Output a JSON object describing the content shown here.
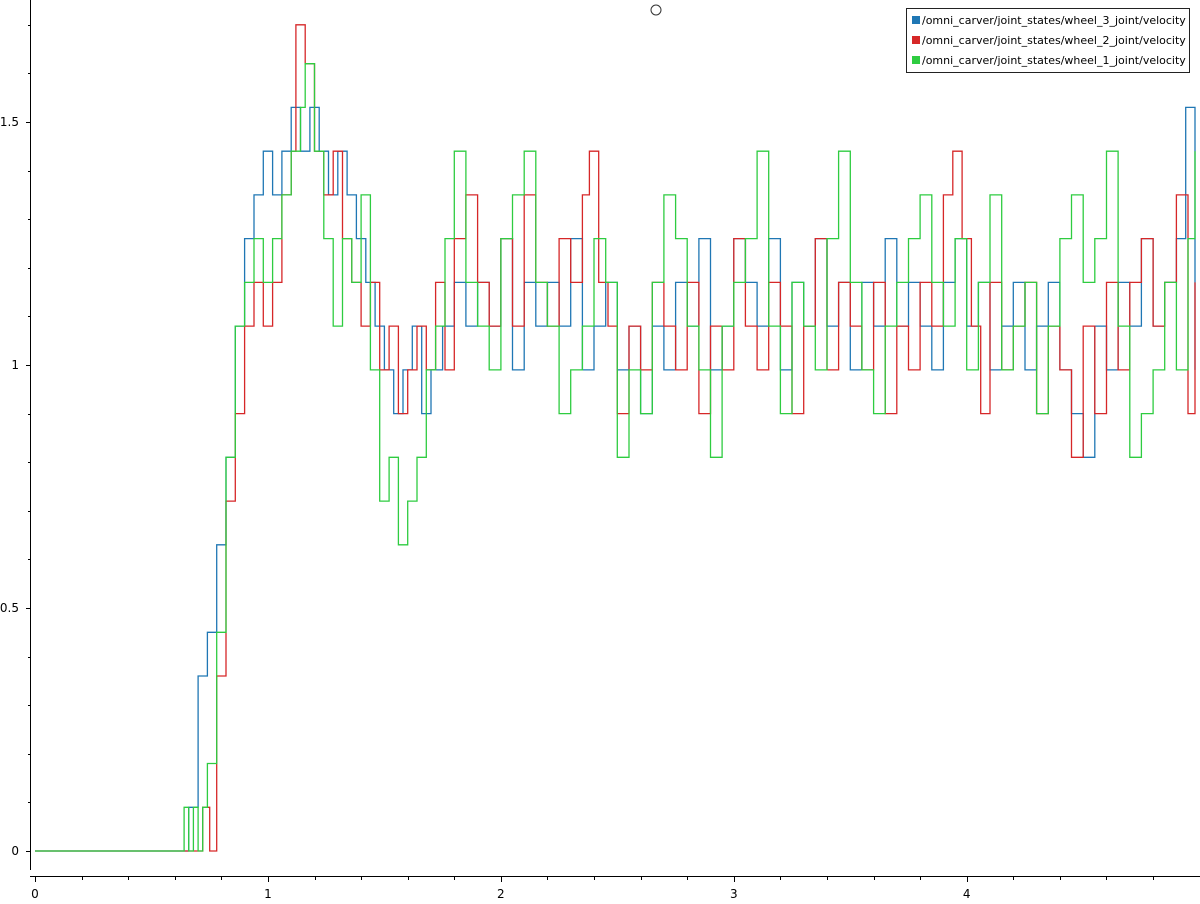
{
  "chart_data": {
    "type": "line",
    "xlim": [
      0,
      4.98
    ],
    "ylim": [
      -0.05,
      1.74
    ],
    "x_ticks": [
      "0",
      "1",
      "2",
      "3",
      "4"
    ],
    "y_ticks": [
      "0",
      "0.5",
      "1",
      "1.5"
    ],
    "grid": false,
    "legend_position": "top-right",
    "series": [
      {
        "name": "/omni_carver/joint_states/wheel_3_joint/velocity",
        "color": "#1f77b4",
        "x": [
          0,
          0.6,
          0.66,
          0.7,
          0.74,
          0.78,
          0.82,
          0.86,
          0.9,
          0.94,
          0.98,
          1.02,
          1.06,
          1.1,
          1.14,
          1.18,
          1.22,
          1.26,
          1.3,
          1.34,
          1.38,
          1.42,
          1.46,
          1.5,
          1.54,
          1.58,
          1.62,
          1.66,
          1.7,
          1.75,
          1.8,
          1.85,
          1.9,
          1.95,
          2.0,
          2.05,
          2.1,
          2.15,
          2.2,
          2.25,
          2.3,
          2.35,
          2.4,
          2.45,
          2.5,
          2.55,
          2.6,
          2.65,
          2.7,
          2.75,
          2.8,
          2.85,
          2.9,
          2.95,
          3.0,
          3.05,
          3.1,
          3.15,
          3.2,
          3.25,
          3.3,
          3.35,
          3.4,
          3.45,
          3.5,
          3.55,
          3.6,
          3.65,
          3.7,
          3.75,
          3.8,
          3.85,
          3.9,
          3.95,
          4.0,
          4.05,
          4.1,
          4.15,
          4.2,
          4.25,
          4.3,
          4.35,
          4.4,
          4.45,
          4.5,
          4.55,
          4.6,
          4.65,
          4.7,
          4.75,
          4.8,
          4.85,
          4.9,
          4.94,
          4.98
        ],
        "y": [
          0,
          0,
          0.09,
          0.36,
          0.45,
          0.63,
          0.81,
          1.08,
          1.26,
          1.35,
          1.44,
          1.35,
          1.44,
          1.53,
          1.44,
          1.53,
          1.44,
          1.35,
          1.44,
          1.35,
          1.26,
          1.17,
          1.08,
          0.99,
          0.9,
          0.99,
          1.08,
          0.9,
          0.99,
          1.08,
          1.17,
          1.08,
          1.17,
          1.08,
          1.26,
          0.99,
          1.17,
          1.08,
          1.17,
          1.08,
          1.26,
          0.99,
          1.08,
          1.17,
          0.99,
          1.08,
          0.9,
          1.08,
          0.99,
          1.17,
          1.08,
          1.26,
          0.99,
          1.08,
          1.26,
          1.17,
          1.08,
          1.26,
          0.99,
          1.17,
          1.08,
          1.26,
          1.08,
          1.17,
          0.99,
          1.17,
          1.08,
          1.26,
          1.08,
          1.17,
          1.08,
          0.99,
          1.17,
          1.26,
          1.08,
          1.17,
          0.99,
          1.08,
          1.17,
          0.99,
          1.08,
          1.17,
          0.99,
          0.9,
          0.81,
          1.08,
          0.99,
          1.17,
          1.08,
          1.26,
          1.08,
          1.17,
          1.26,
          1.53,
          0.99
        ]
      },
      {
        "name": "/omni_carver/joint_states/wheel_2_joint/velocity",
        "color": "#d62728",
        "x": [
          0,
          0.68,
          0.72,
          0.75,
          0.78,
          0.82,
          0.86,
          0.9,
          0.94,
          0.98,
          1.02,
          1.06,
          1.1,
          1.12,
          1.16,
          1.2,
          1.24,
          1.28,
          1.32,
          1.36,
          1.4,
          1.44,
          1.48,
          1.52,
          1.56,
          1.6,
          1.64,
          1.68,
          1.72,
          1.76,
          1.8,
          1.85,
          1.9,
          1.95,
          2.0,
          2.05,
          2.1,
          2.15,
          2.2,
          2.25,
          2.3,
          2.35,
          2.38,
          2.42,
          2.46,
          2.5,
          2.55,
          2.6,
          2.65,
          2.7,
          2.75,
          2.8,
          2.85,
          2.9,
          2.95,
          3.0,
          3.05,
          3.1,
          3.15,
          3.2,
          3.25,
          3.3,
          3.35,
          3.4,
          3.45,
          3.5,
          3.55,
          3.6,
          3.65,
          3.7,
          3.75,
          3.8,
          3.85,
          3.9,
          3.94,
          3.98,
          4.02,
          4.06,
          4.1,
          4.15,
          4.2,
          4.25,
          4.3,
          4.35,
          4.4,
          4.45,
          4.5,
          4.55,
          4.6,
          4.65,
          4.7,
          4.75,
          4.8,
          4.85,
          4.9,
          4.95,
          4.98
        ],
        "y": [
          0,
          0,
          0.09,
          0,
          0.36,
          0.72,
          0.9,
          1.08,
          1.17,
          1.08,
          1.17,
          1.35,
          1.44,
          1.7,
          1.62,
          1.44,
          1.35,
          1.44,
          1.26,
          1.17,
          1.08,
          1.17,
          0.99,
          1.08,
          0.9,
          0.99,
          1.08,
          0.99,
          1.17,
          0.99,
          1.26,
          1.35,
          1.17,
          1.08,
          1.26,
          1.08,
          1.35,
          1.17,
          1.08,
          1.26,
          1.17,
          1.35,
          1.44,
          1.17,
          1.08,
          0.9,
          1.08,
          0.99,
          1.17,
          1.08,
          0.99,
          1.17,
          0.9,
          1.08,
          0.99,
          1.26,
          1.08,
          0.99,
          1.17,
          1.08,
          0.9,
          1.08,
          1.26,
          0.99,
          1.17,
          1.08,
          0.99,
          1.17,
          0.9,
          1.08,
          0.99,
          1.17,
          1.08,
          1.35,
          1.44,
          1.26,
          1.08,
          0.9,
          1.17,
          0.99,
          1.08,
          1.17,
          0.9,
          1.08,
          0.99,
          0.81,
          1.08,
          0.9,
          1.17,
          0.99,
          1.17,
          1.26,
          1.08,
          1.17,
          1.35,
          0.9,
          1.17
        ]
      },
      {
        "name": "/omni_carver/joint_states/wheel_1_joint/velocity",
        "color": "#2ecc40",
        "x": [
          0,
          0.62,
          0.64,
          0.66,
          0.68,
          0.7,
          0.72,
          0.74,
          0.78,
          0.82,
          0.86,
          0.9,
          0.94,
          0.98,
          1.02,
          1.06,
          1.1,
          1.14,
          1.16,
          1.2,
          1.24,
          1.28,
          1.32,
          1.36,
          1.4,
          1.44,
          1.48,
          1.52,
          1.56,
          1.6,
          1.64,
          1.68,
          1.72,
          1.76,
          1.8,
          1.85,
          1.9,
          1.95,
          2.0,
          2.05,
          2.1,
          2.15,
          2.2,
          2.25,
          2.3,
          2.35,
          2.4,
          2.45,
          2.5,
          2.55,
          2.6,
          2.65,
          2.7,
          2.75,
          2.8,
          2.85,
          2.9,
          2.95,
          3.0,
          3.05,
          3.1,
          3.15,
          3.2,
          3.25,
          3.3,
          3.35,
          3.4,
          3.45,
          3.5,
          3.55,
          3.6,
          3.65,
          3.7,
          3.75,
          3.8,
          3.85,
          3.9,
          3.95,
          4.0,
          4.05,
          4.1,
          4.15,
          4.2,
          4.25,
          4.3,
          4.35,
          4.4,
          4.45,
          4.5,
          4.55,
          4.6,
          4.65,
          4.7,
          4.75,
          4.8,
          4.85,
          4.9,
          4.95,
          4.98
        ],
        "y": [
          0,
          0,
          0.09,
          0,
          0.09,
          0,
          0.09,
          0.18,
          0.45,
          0.81,
          1.08,
          1.17,
          1.26,
          1.17,
          1.26,
          1.35,
          1.44,
          1.53,
          1.62,
          1.44,
          1.26,
          1.08,
          1.26,
          1.17,
          1.35,
          0.99,
          0.72,
          0.81,
          0.63,
          0.72,
          0.81,
          0.99,
          1.08,
          1.26,
          1.44,
          1.17,
          1.08,
          0.99,
          1.26,
          1.35,
          1.44,
          1.17,
          1.08,
          0.9,
          0.99,
          1.08,
          1.26,
          1.17,
          0.81,
          0.99,
          0.9,
          1.17,
          1.35,
          1.26,
          1.08,
          0.99,
          0.81,
          1.08,
          1.17,
          1.26,
          1.44,
          1.08,
          0.9,
          1.17,
          1.08,
          0.99,
          1.26,
          1.44,
          1.17,
          0.99,
          0.9,
          1.08,
          1.17,
          1.26,
          1.35,
          1.17,
          1.08,
          1.26,
          0.99,
          1.17,
          1.35,
          0.99,
          1.08,
          1.17,
          0.9,
          1.08,
          1.26,
          1.35,
          1.17,
          1.26,
          1.44,
          1.08,
          0.81,
          0.9,
          0.99,
          1.17,
          0.99,
          1.26,
          1.44
        ]
      }
    ]
  }
}
